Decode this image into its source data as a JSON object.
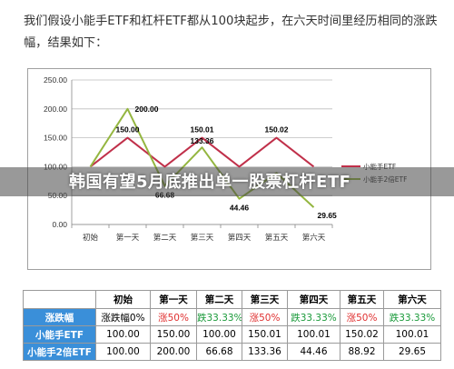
{
  "intro_text": "我们假设小能手ETF和杠杆ETF都从100块起步，在六天时间里经历相同的涨跌幅，结果如下：",
  "banner_text": "韩国有望5月底推出单一股票杠杆ETF",
  "colors": {
    "series1": "#c0304a",
    "series2": "#94b640",
    "table_header_bg": "#3a8fd9",
    "up": "#e03030",
    "down": "#1a9a3a"
  },
  "chart_data": {
    "type": "line",
    "categories": [
      "初始",
      "第一天",
      "第二天",
      "第三天",
      "第四天",
      "第五天",
      "第六天"
    ],
    "y_ticks": [
      "0.00",
      "50.00",
      "100.00",
      "150.00",
      "200.00",
      "250.00"
    ],
    "ylim": [
      0,
      250
    ],
    "grid": true,
    "legend_position": "right",
    "series": [
      {
        "name": "小能手ETF",
        "values": [
          100.0,
          150.0,
          100.0,
          150.01,
          100.01,
          150.02,
          100.01
        ]
      },
      {
        "name": "小能手2倍ETF",
        "values": [
          100.0,
          200.0,
          66.68,
          133.36,
          44.46,
          88.92,
          29.65
        ]
      }
    ],
    "data_labels": [
      {
        "series": 0,
        "index": 1,
        "text": "150.00"
      },
      {
        "series": 0,
        "index": 3,
        "text": "150.01"
      },
      {
        "series": 0,
        "index": 5,
        "text": "150.02"
      },
      {
        "series": 1,
        "index": 1,
        "text": "200.00"
      },
      {
        "series": 1,
        "index": 2,
        "text": "66.68"
      },
      {
        "series": 1,
        "index": 3,
        "text": "133.36"
      },
      {
        "series": 1,
        "index": 4,
        "text": "44.46"
      },
      {
        "series": 1,
        "index": 6,
        "text": "29.65"
      }
    ]
  },
  "table": {
    "headers": [
      "",
      "初始",
      "第一天",
      "第二天",
      "第三天",
      "第四天",
      "第五天",
      "第六天"
    ],
    "rows": [
      {
        "label": "涨跌幅",
        "cells": [
          {
            "text": "涨跌幅0%",
            "tone": "plain"
          },
          {
            "text": "涨50%",
            "tone": "up"
          },
          {
            "text": "跌33.33%",
            "tone": "down"
          },
          {
            "text": "涨50%",
            "tone": "up"
          },
          {
            "text": "跌33.33%",
            "tone": "down"
          },
          {
            "text": "涨50%",
            "tone": "up"
          },
          {
            "text": "跌33.33%",
            "tone": "down"
          }
        ]
      },
      {
        "label": "小能手ETF",
        "cells": [
          {
            "text": "100.00",
            "tone": "plain"
          },
          {
            "text": "150.00",
            "tone": "plain"
          },
          {
            "text": "100.00",
            "tone": "plain"
          },
          {
            "text": "150.01",
            "tone": "plain"
          },
          {
            "text": "100.01",
            "tone": "plain"
          },
          {
            "text": "150.02",
            "tone": "plain"
          },
          {
            "text": "100.01",
            "tone": "plain"
          }
        ]
      },
      {
        "label": "小能手2倍ETF",
        "cells": [
          {
            "text": "100.00",
            "tone": "plain"
          },
          {
            "text": "200.00",
            "tone": "plain"
          },
          {
            "text": "66.68",
            "tone": "plain"
          },
          {
            "text": "133.36",
            "tone": "plain"
          },
          {
            "text": "44.46",
            "tone": "plain"
          },
          {
            "text": "88.92",
            "tone": "plain"
          },
          {
            "text": "29.65",
            "tone": "plain"
          }
        ]
      }
    ]
  }
}
